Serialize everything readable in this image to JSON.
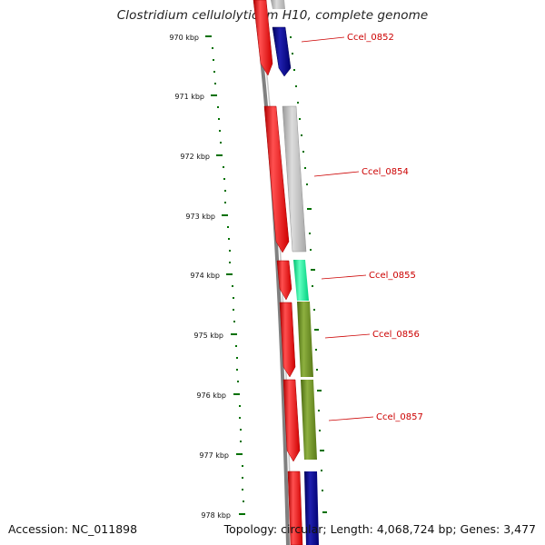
{
  "title": "Clostridium cellulolyticum H10, complete genome",
  "footer": {
    "accession": "Accession: NC_011898",
    "topology": "Topology: circular; Length: 4,068,724 bp; Genes: 3,477"
  },
  "colors": {
    "forward_strand": "#ff0000",
    "reverse_navy": "#000080",
    "reverse_grey": "#b8b8b8",
    "reverse_aqua": "#00e890",
    "reverse_olive": "#6b8e23",
    "label": "#cc0000",
    "ticks": "#007000",
    "backbone": "#808080"
  },
  "ticks": [
    "970 kbp",
    "971 kbp",
    "972 kbp",
    "973 kbp",
    "974 kbp",
    "975 kbp",
    "976 kbp",
    "977 kbp",
    "978 kbp"
  ],
  "gene_labels": [
    "Ccel_0852",
    "Ccel_0854",
    "Ccel_0855",
    "Ccel_0856",
    "Ccel_0857"
  ]
}
